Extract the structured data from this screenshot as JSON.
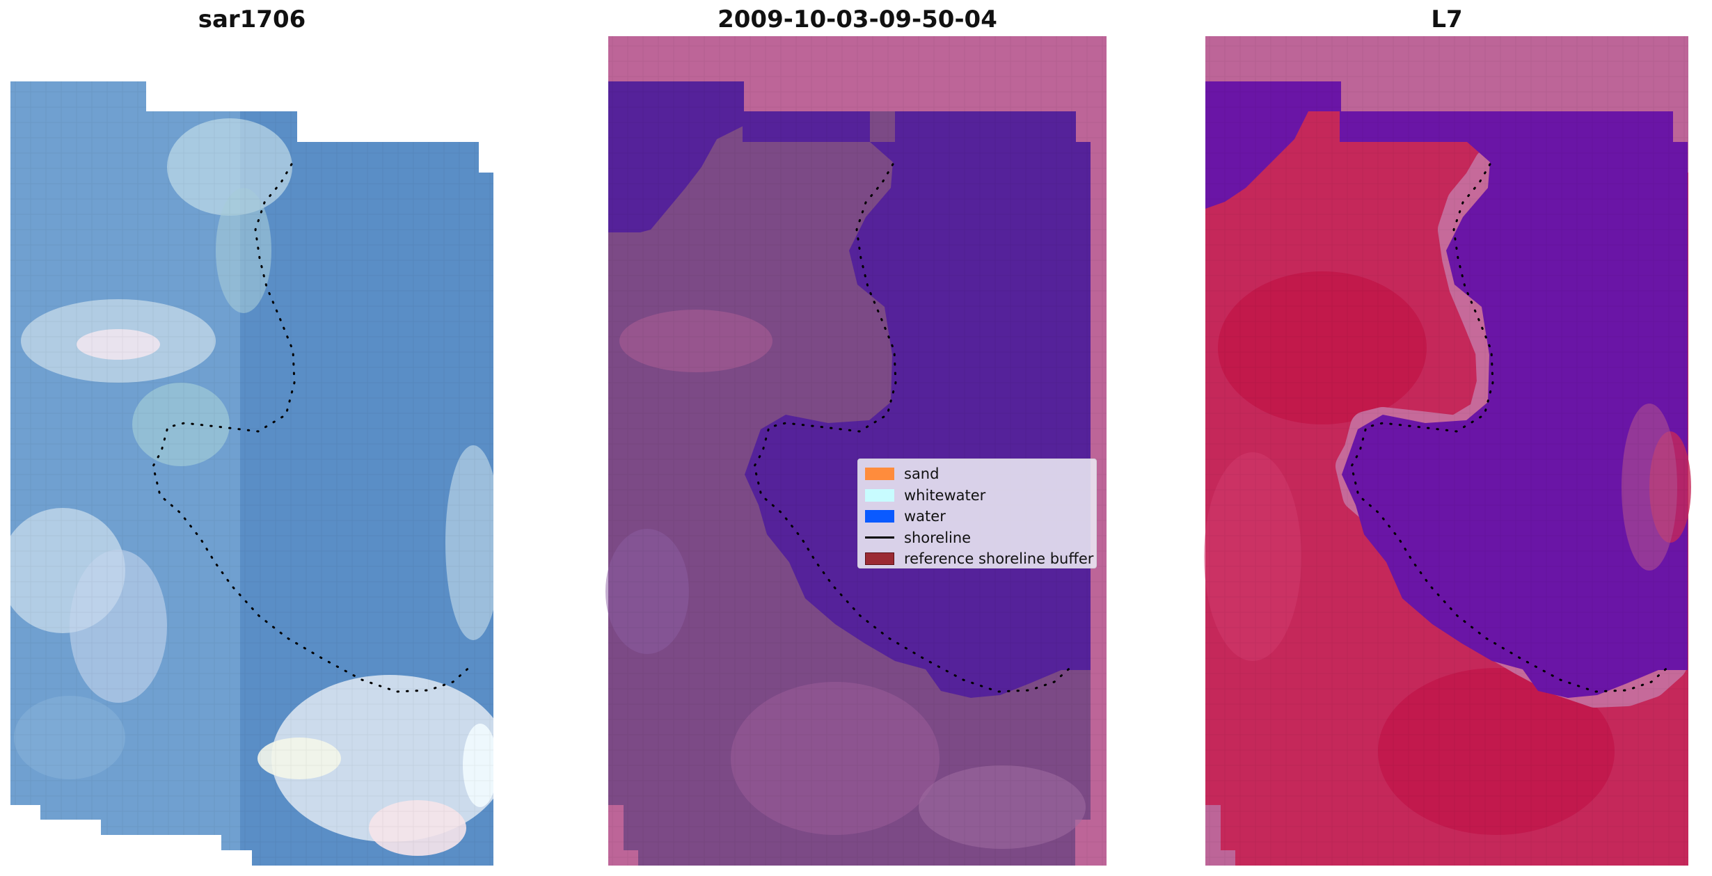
{
  "panels": [
    {
      "title": "sar1706",
      "kind": "rgb"
    },
    {
      "title": "2009-10-03-09-50-04",
      "kind": "classified"
    },
    {
      "title": "L7",
      "kind": "index"
    }
  ],
  "legend": {
    "items": [
      {
        "label": "sand",
        "color": "#ff8c3c",
        "type": "patch"
      },
      {
        "label": "whitewater",
        "color": "#c8fcff",
        "type": "patch"
      },
      {
        "label": "water",
        "color": "#0a5aff",
        "type": "patch"
      },
      {
        "label": "shoreline",
        "color": "#000000",
        "type": "line"
      },
      {
        "label": "reference shoreline buffer",
        "color": "#9b2a33",
        "type": "patch"
      }
    ]
  },
  "colors": {
    "rgb_base": "#5b8fc8",
    "rgb_bright": "#d7e9f2",
    "classified_land": "#7c4a86",
    "classified_water": "#55229a",
    "classified_buffer": "#bd6598",
    "index_land": "#c5285a",
    "index_water": "#6a15a6",
    "index_buffer": "#bd6598",
    "shoreline": "#000000"
  }
}
